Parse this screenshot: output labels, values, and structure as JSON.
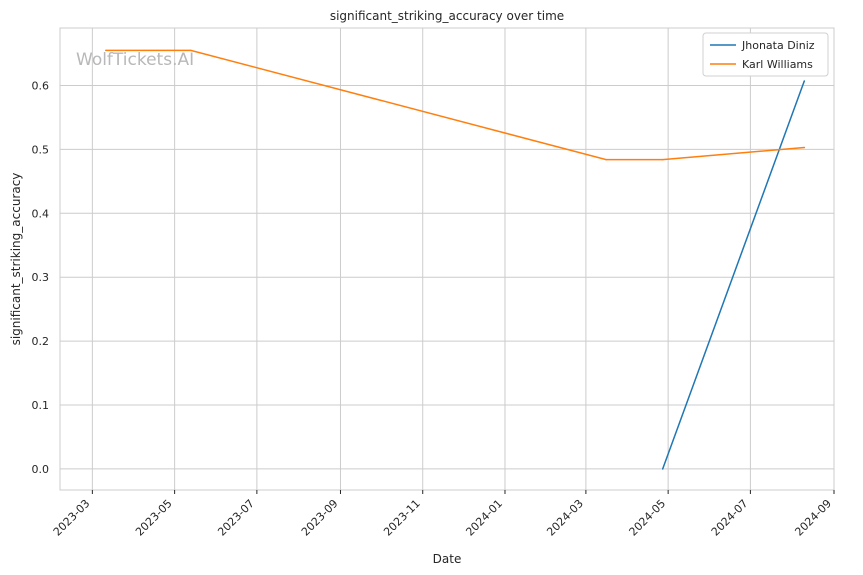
{
  "chart_data": {
    "type": "line",
    "title": "significant_striking_accuracy over time",
    "xlabel": "Date",
    "ylabel": "significant_striking_accuracy",
    "watermark": "WolfTickets.AI",
    "x_type": "date",
    "xlim": [
      "2023-02-05",
      "2024-09-01"
    ],
    "ylim": [
      -0.033,
      0.69
    ],
    "x_ticks": [
      "2023-03",
      "2023-05",
      "2023-07",
      "2023-09",
      "2023-11",
      "2024-01",
      "2024-03",
      "2024-05",
      "2024-07",
      "2024-09"
    ],
    "x_tick_dates": [
      "2023-03-01",
      "2023-05-01",
      "2023-07-01",
      "2023-09-01",
      "2023-11-01",
      "2024-01-01",
      "2024-03-01",
      "2024-05-01",
      "2024-07-01",
      "2024-09-01"
    ],
    "y_ticks": [
      "0.0",
      "0.1",
      "0.2",
      "0.3",
      "0.4",
      "0.5",
      "0.6"
    ],
    "y_tick_values": [
      0.0,
      0.1,
      0.2,
      0.3,
      0.4,
      0.5,
      0.6
    ],
    "grid": true,
    "legend_position": "top-right",
    "series": [
      {
        "name": "Jhonata Diniz",
        "color": "#1f77b4",
        "points": [
          {
            "x": "2024-04-27",
            "y": 0.0
          },
          {
            "x": "2024-08-10",
            "y": 0.607
          }
        ]
      },
      {
        "name": "Karl Williams",
        "color": "#ff7f0e",
        "points": [
          {
            "x": "2023-03-11",
            "y": 0.655
          },
          {
            "x": "2023-05-13",
            "y": 0.655
          },
          {
            "x": "2024-03-16",
            "y": 0.484
          },
          {
            "x": "2024-04-27",
            "y": 0.484
          },
          {
            "x": "2024-08-10",
            "y": 0.503
          }
        ]
      }
    ]
  }
}
